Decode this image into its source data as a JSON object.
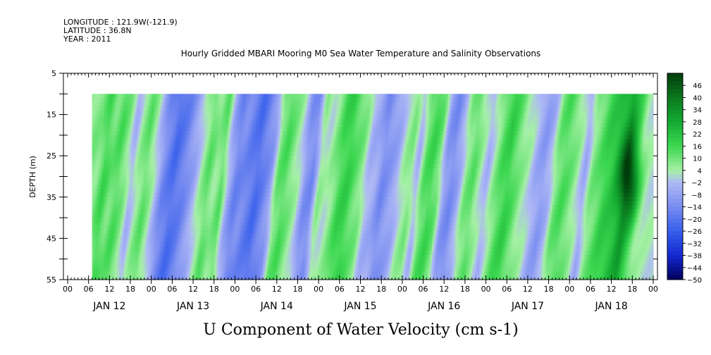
{
  "header": {
    "longitude": "LONGITUDE : 121.9W(-121.9)",
    "latitude": "LATITUDE : 36.8N",
    "year": "YEAR : 2011"
  },
  "chart_data": {
    "type": "heatmap",
    "title": "Hourly Gridded MBARI Mooring M0 Sea Water Temperature and Salinity Observations",
    "xlabel": "U Component of Water Velocity (cm s-1)",
    "ylabel": "DEPTH (m)",
    "y_range": [
      5,
      55
    ],
    "y_ticks": [
      5,
      15,
      25,
      35,
      45,
      55
    ],
    "y_tick_labels": [
      "5",
      "15",
      "25",
      "35",
      "45",
      "55"
    ],
    "y_inverted": true,
    "data_depth_range": [
      10,
      55
    ],
    "hour_tick_labels": [
      "00",
      "06",
      "12",
      "18",
      "00",
      "06",
      "12",
      "18",
      "00",
      "06",
      "12",
      "18",
      "00",
      "06",
      "12",
      "18",
      "00",
      "06",
      "12",
      "18",
      "00",
      "06",
      "12",
      "18",
      "00",
      "06",
      "12",
      "18",
      "00"
    ],
    "day_labels": [
      "JAN 12",
      "JAN 13",
      "JAN 14",
      "JAN 15",
      "JAN 16",
      "JAN 17",
      "JAN 18"
    ],
    "data_start_hour": 7,
    "data_end_hour": 168,
    "bands": [
      {
        "hour": 8,
        "value": 8
      },
      {
        "hour": 10,
        "value": 16
      },
      {
        "hour": 12,
        "value": 10
      },
      {
        "hour": 14,
        "value": 14
      },
      {
        "hour": 16,
        "value": 8
      },
      {
        "hour": 18,
        "value": -4
      },
      {
        "hour": 20,
        "value": 6
      },
      {
        "hour": 22,
        "value": 12
      },
      {
        "hour": 24,
        "value": 4
      },
      {
        "hour": 27,
        "value": -14
      },
      {
        "hour": 30,
        "value": -22
      },
      {
        "hour": 33,
        "value": -16
      },
      {
        "hour": 36,
        "value": -6
      },
      {
        "hour": 38,
        "value": 4
      },
      {
        "hour": 40,
        "value": 12
      },
      {
        "hour": 42,
        "value": 6
      },
      {
        "hour": 44,
        "value": 12
      },
      {
        "hour": 46,
        "value": -6
      },
      {
        "hour": 48,
        "value": -16
      },
      {
        "hour": 50,
        "value": -14
      },
      {
        "hour": 52,
        "value": -18
      },
      {
        "hour": 54,
        "value": -22
      },
      {
        "hour": 56,
        "value": -16
      },
      {
        "hour": 58,
        "value": -10
      },
      {
        "hour": 60,
        "value": 10
      },
      {
        "hour": 62,
        "value": 14
      },
      {
        "hour": 64,
        "value": 8
      },
      {
        "hour": 66,
        "value": 2
      },
      {
        "hour": 68,
        "value": -12
      },
      {
        "hour": 70,
        "value": -14
      },
      {
        "hour": 72,
        "value": 6
      },
      {
        "hour": 74,
        "value": 2
      },
      {
        "hour": 76,
        "value": 8
      },
      {
        "hour": 78,
        "value": 16
      },
      {
        "hour": 80,
        "value": 18
      },
      {
        "hour": 82,
        "value": 12
      },
      {
        "hour": 84,
        "value": 8
      },
      {
        "hour": 86,
        "value": -4
      },
      {
        "hour": 88,
        "value": -6
      },
      {
        "hour": 90,
        "value": -14
      },
      {
        "hour": 92,
        "value": -10
      },
      {
        "hour": 94,
        "value": -6
      },
      {
        "hour": 96,
        "value": 4
      },
      {
        "hour": 98,
        "value": 8
      },
      {
        "hour": 100,
        "value": -4
      },
      {
        "hour": 102,
        "value": 12
      },
      {
        "hour": 104,
        "value": 16
      },
      {
        "hour": 106,
        "value": 10
      },
      {
        "hour": 108,
        "value": -10
      },
      {
        "hour": 110,
        "value": -14
      },
      {
        "hour": 112,
        "value": -6
      },
      {
        "hour": 114,
        "value": 8
      },
      {
        "hour": 116,
        "value": 12
      },
      {
        "hour": 118,
        "value": 4
      },
      {
        "hour": 120,
        "value": -4
      },
      {
        "hour": 122,
        "value": 6
      },
      {
        "hour": 124,
        "value": 14
      },
      {
        "hour": 126,
        "value": 18
      },
      {
        "hour": 128,
        "value": 12
      },
      {
        "hour": 130,
        "value": 6
      },
      {
        "hour": 132,
        "value": 2
      },
      {
        "hour": 134,
        "value": -6
      },
      {
        "hour": 136,
        "value": -10
      },
      {
        "hour": 138,
        "value": -4
      },
      {
        "hour": 140,
        "value": 10
      },
      {
        "hour": 142,
        "value": 14
      },
      {
        "hour": 144,
        "value": 10
      },
      {
        "hour": 146,
        "value": 4
      },
      {
        "hour": 148,
        "value": -6
      },
      {
        "hour": 150,
        "value": 8
      },
      {
        "hour": 152,
        "value": 12
      },
      {
        "hour": 154,
        "value": 18
      },
      {
        "hour": 156,
        "value": 20
      },
      {
        "hour": 158,
        "value": 24
      },
      {
        "hour": 160,
        "value": 30
      },
      {
        "hour": 162,
        "value": 18
      },
      {
        "hour": 164,
        "value": 6
      },
      {
        "hour": 166,
        "value": 2
      }
    ],
    "peak": {
      "hour": 161,
      "depth": 30,
      "value": 48
    },
    "colorbar": {
      "labels": [
        "46",
        "40",
        "34",
        "28",
        "22",
        "16",
        "10",
        "4",
        "-2",
        "-8",
        "-14",
        "-20",
        "-26",
        "-32",
        "-38",
        "-44",
        "-50"
      ],
      "min": -50,
      "max": 52
    }
  }
}
